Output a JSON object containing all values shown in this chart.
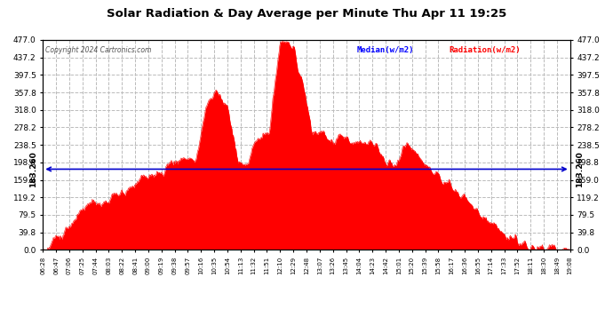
{
  "title": "Solar Radiation & Day Average per Minute Thu Apr 11 19:25",
  "copyright": "Copyright 2024 Cartronics.com",
  "median_label": "Median(w/m2)",
  "radiation_label": "Radiation(w/m2)",
  "median_value": 183.26,
  "median_text": "183.260",
  "y_ticks": [
    0.0,
    39.8,
    79.5,
    119.2,
    159.0,
    198.8,
    238.5,
    278.2,
    318.0,
    357.8,
    397.5,
    437.2,
    477.0
  ],
  "ymin": 0.0,
  "ymax": 477.0,
  "background_color": "#ffffff",
  "fill_color": "#ff0000",
  "median_line_color": "#0000cc",
  "grid_color": "#bbbbbb",
  "title_color": "#000000",
  "copyright_color": "#555555",
  "median_label_color": "#0000ff",
  "radiation_label_color": "#ff0000",
  "x_tick_labels": [
    "06:28",
    "06:47",
    "07:06",
    "07:25",
    "07:44",
    "08:03",
    "08:22",
    "08:41",
    "09:00",
    "09:19",
    "09:38",
    "09:57",
    "10:16",
    "10:35",
    "10:54",
    "11:13",
    "11:32",
    "11:51",
    "12:10",
    "12:29",
    "12:48",
    "13:07",
    "13:26",
    "13:45",
    "14:04",
    "14:23",
    "14:42",
    "15:01",
    "15:20",
    "15:39",
    "15:58",
    "16:17",
    "16:36",
    "16:55",
    "17:14",
    "17:33",
    "17:52",
    "18:11",
    "18:30",
    "18:49",
    "19:08"
  ],
  "keypoints_t": [
    0.0,
    0.01,
    0.03,
    0.05,
    0.07,
    0.09,
    0.11,
    0.13,
    0.15,
    0.17,
    0.19,
    0.21,
    0.23,
    0.25,
    0.27,
    0.29,
    0.31,
    0.33,
    0.35,
    0.37,
    0.39,
    0.41,
    0.43,
    0.45,
    0.47,
    0.49,
    0.51,
    0.53,
    0.55,
    0.57,
    0.59,
    0.61,
    0.63,
    0.65,
    0.67,
    0.69,
    0.71,
    0.73,
    0.75,
    0.77,
    0.79,
    0.81,
    0.83,
    0.85,
    0.87,
    0.89,
    0.91,
    0.93,
    0.95,
    0.97,
    1.0
  ],
  "keypoints_v": [
    5,
    10,
    30,
    55,
    90,
    110,
    100,
    115,
    130,
    145,
    160,
    170,
    180,
    200,
    215,
    205,
    330,
    360,
    330,
    200,
    200,
    260,
    280,
    477,
    460,
    390,
    270,
    260,
    250,
    255,
    245,
    245,
    240,
    200,
    200,
    240,
    220,
    185,
    165,
    150,
    130,
    105,
    80,
    60,
    40,
    25,
    15,
    8,
    4,
    2,
    0
  ]
}
